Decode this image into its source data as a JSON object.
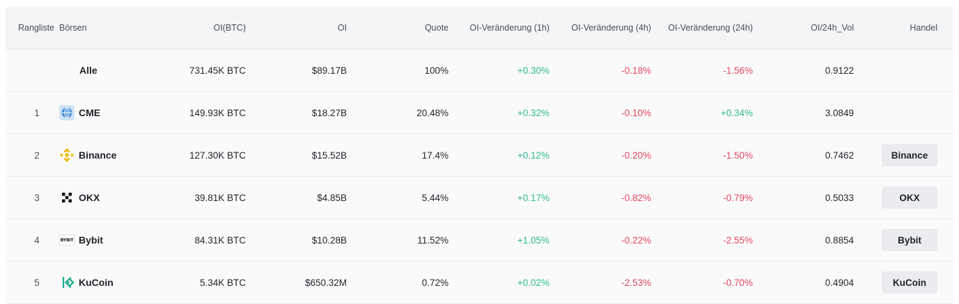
{
  "columns": {
    "rank": "Rangliste",
    "exchange": "Börsen",
    "oi_btc": "OI(BTC)",
    "oi": "OI",
    "share": "Quote",
    "change_1h": "OI-Veränderung (1h)",
    "change_4h": "OI-Veränderung (4h)",
    "change_24h": "OI-Veränderung (24h)",
    "oi_vol": "OI/24h_Vol",
    "trade": "Handel"
  },
  "rows": [
    {
      "rank": "",
      "exchange": "Alle",
      "icon": "none",
      "oi_btc": "731.45K BTC",
      "oi": "$89.17B",
      "share": "100%",
      "change_1h": "+0.30%",
      "change_4h": "-0.18%",
      "change_24h": "-1.56%",
      "oi_vol": "0.9122",
      "trade": ""
    },
    {
      "rank": "1",
      "exchange": "CME",
      "icon": "globe-icon",
      "oi_btc": "149.93K BTC",
      "oi": "$18.27B",
      "share": "20.48%",
      "change_1h": "+0.32%",
      "change_4h": "-0.10%",
      "change_24h": "+0.34%",
      "oi_vol": "3.0849",
      "trade": ""
    },
    {
      "rank": "2",
      "exchange": "Binance",
      "icon": "binance-logo-icon",
      "oi_btc": "127.30K BTC",
      "oi": "$15.52B",
      "share": "17.4%",
      "change_1h": "+0.12%",
      "change_4h": "-0.20%",
      "change_24h": "-1.50%",
      "oi_vol": "0.7462",
      "trade": "Binance"
    },
    {
      "rank": "3",
      "exchange": "OKX",
      "icon": "okx-logo-icon",
      "oi_btc": "39.81K BTC",
      "oi": "$4.85B",
      "share": "5.44%",
      "change_1h": "+0.17%",
      "change_4h": "-0.82%",
      "change_24h": "-0.79%",
      "oi_vol": "0.5033",
      "trade": "OKX"
    },
    {
      "rank": "4",
      "exchange": "Bybit",
      "icon": "bybit-logo-icon",
      "oi_btc": "84.31K BTC",
      "oi": "$10.28B",
      "share": "11.52%",
      "change_1h": "+1.05%",
      "change_4h": "-0.22%",
      "change_24h": "-2.55%",
      "oi_vol": "0.8854",
      "trade": "Bybit"
    },
    {
      "rank": "5",
      "exchange": "KuCoin",
      "icon": "kucoin-logo-icon",
      "oi_btc": "5.34K BTC",
      "oi": "$650.32M",
      "share": "0.72%",
      "change_1h": "+0.02%",
      "change_4h": "-2.53%",
      "change_24h": "-0.70%",
      "oi_vol": "0.4904",
      "trade": "KuCoin"
    }
  ],
  "icons": {
    "bybit_text": "BYBIT"
  },
  "colors": {
    "positive": "#2ebd85",
    "negative": "#e3455e",
    "binance": "#f0b90b",
    "kucoin": "#24ae8f",
    "cme": "#4a90d9"
  }
}
